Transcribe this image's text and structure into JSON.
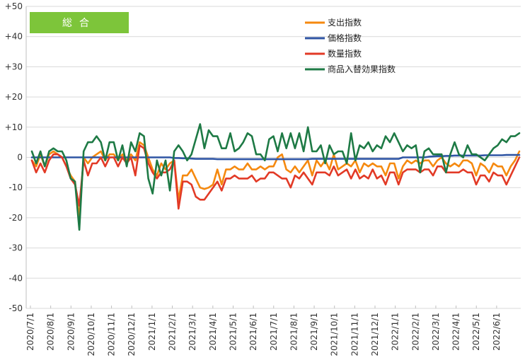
{
  "chart_data": {
    "type": "line",
    "title": "総合",
    "yticks": [
      "+50",
      "+40",
      "+30",
      "+20",
      "+10",
      "0",
      "-10",
      "-20",
      "-30",
      "-40",
      "-50"
    ],
    "ylim": [
      -50,
      50
    ],
    "xticks": [
      "2020/7/1",
      "2020/8/1",
      "2020/9/1",
      "2020/10/1",
      "2020/11/1",
      "2020/12/1",
      "2021/1/1",
      "2021/2/1",
      "2021/3/1",
      "2021/4/1",
      "2021/5/1",
      "2021/6/1",
      "2021/7/1",
      "2021/8/1",
      "2021/9/1",
      "2021/10/1",
      "2021/11/1",
      "2021/12/1",
      "2022/1/1",
      "2022/2/1",
      "2022/3/1",
      "2022/4/1",
      "2022/5/1",
      "2022/6/1"
    ],
    "grid": true,
    "legend_position": "top-right",
    "colors": {
      "spending": "#f5890f",
      "price": "#2f55a4",
      "quantity": "#e23a26",
      "substitution": "#1e7a45",
      "title_bg": "#7dc53a"
    },
    "series": [
      {
        "name": "支出指数",
        "key": "spending",
        "values": [
          -1,
          -3,
          1,
          -3,
          1,
          2,
          1,
          0,
          -3,
          -6,
          -8,
          -20,
          0,
          -2,
          0,
          1,
          2,
          -1,
          1,
          1,
          -1,
          1,
          -1,
          1,
          -1,
          5,
          4,
          0,
          -4,
          -6,
          -2,
          -4,
          -2,
          -1,
          -14,
          -6,
          -6,
          -4,
          -7,
          -10,
          -10.5,
          -10,
          -9,
          -4,
          -9,
          -4,
          -4,
          -3,
          -4,
          -4,
          -2,
          -4,
          -4,
          -3,
          -4,
          -3,
          -3,
          0,
          1,
          -4,
          -5,
          -3,
          -5,
          -3,
          -1,
          -6,
          -1,
          -3,
          -1,
          -4,
          1,
          -4,
          -3,
          -2,
          -3,
          -1,
          -5,
          -2,
          -3,
          -2,
          -3,
          -3,
          -6,
          -2,
          -2,
          -7,
          -3,
          -1,
          -2,
          -1,
          -2,
          -1,
          -1,
          -3,
          -1,
          0,
          -2,
          -3,
          -2,
          -3,
          -1,
          -1,
          -2,
          -6,
          -2,
          -3,
          -5,
          -2,
          -3,
          -3,
          -6,
          -3,
          -1,
          2
        ]
      },
      {
        "name": "価格指数",
        "key": "price",
        "values": [
          0,
          0,
          0,
          0,
          0,
          0,
          0,
          0,
          0,
          0,
          0,
          0,
          0,
          0,
          0,
          0,
          0,
          0,
          0,
          0,
          0,
          0,
          0,
          0,
          0,
          0,
          0,
          0,
          0,
          0,
          0,
          0,
          0,
          -0.2,
          -0.2,
          -0.3,
          -0.3,
          -0.4,
          -0.5,
          -0.5,
          -0.5,
          -0.5,
          -0.5,
          -0.6,
          -0.6,
          -0.6,
          -0.6,
          -0.6,
          -0.6,
          -0.6,
          -0.6,
          -0.6,
          -0.6,
          -0.6,
          -0.6,
          -0.6,
          -0.6,
          -0.6,
          -0.6,
          -0.6,
          -0.6,
          -0.6,
          -0.6,
          -0.6,
          -0.6,
          -0.5,
          -0.5,
          -0.5,
          -0.5,
          -0.5,
          -0.5,
          -0.5,
          -0.5,
          -0.5,
          -0.5,
          -0.5,
          -0.5,
          -0.5,
          -0.5,
          -0.5,
          -0.5,
          -0.5,
          -0.5,
          -0.5,
          -0.5,
          -0.5,
          0,
          0,
          0,
          0,
          0,
          0,
          0.2,
          0.3,
          0.4,
          0.4,
          0.5,
          0.5,
          0.6,
          0.6,
          0.6,
          0.6,
          0.6,
          0.6,
          0.6,
          0.7,
          0.7,
          0.7,
          0.7,
          0.7,
          0.8,
          0.8,
          0.8,
          0.8
        ]
      },
      {
        "name": "数量指数",
        "key": "quantity",
        "values": [
          -1,
          -5,
          -2,
          -5,
          -1,
          1,
          1,
          0,
          -3,
          -7,
          -9,
          -16,
          -1,
          -6,
          -2,
          -2,
          0,
          -3,
          0,
          0,
          -3,
          0,
          -2,
          0,
          -6,
          4,
          3,
          -2,
          -5,
          -7,
          -5,
          -5,
          -4,
          -1,
          -17,
          -8,
          -8,
          -9,
          -13,
          -14,
          -14,
          -12,
          -10,
          -8,
          -11,
          -7,
          -7,
          -6,
          -7,
          -7,
          -7,
          -6,
          -8,
          -7,
          -7,
          -5,
          -5,
          -6,
          -7,
          -7,
          -10,
          -6,
          -7,
          -5,
          -7,
          -9,
          -5,
          -5,
          -5,
          -6,
          -3,
          -6,
          -5,
          -4,
          -7,
          -4,
          -7,
          -6,
          -7,
          -4,
          -7,
          -6,
          -9,
          -5,
          -5,
          -9,
          -5,
          -4,
          -4,
          -4,
          -5,
          -4,
          -4,
          -6,
          -3,
          -3,
          -5,
          -5,
          -5,
          -5,
          -4,
          -5,
          -5,
          -9,
          -6,
          -6,
          -8,
          -5,
          -6,
          -6,
          -9,
          -6,
          -3,
          0
        ]
      },
      {
        "name": "商品入替効果指数",
        "key": "substitution",
        "values": [
          2,
          -2,
          2,
          -3,
          2,
          3,
          2,
          2,
          -1,
          -7,
          -8,
          -24,
          2,
          5,
          5,
          7,
          5,
          -1,
          5,
          5,
          -1,
          4,
          -3,
          5,
          2,
          8,
          7,
          -7,
          -12,
          -1,
          -6,
          -1,
          -11,
          2,
          4,
          2,
          -1,
          1,
          6,
          11,
          3,
          9,
          7,
          7,
          3,
          3,
          8,
          2,
          3,
          5,
          8,
          7,
          1,
          1,
          -1,
          6,
          7,
          2,
          8,
          3,
          8,
          3,
          8,
          2,
          10,
          2,
          2,
          4,
          -2,
          4,
          1,
          2,
          2,
          -2,
          8,
          -1,
          4,
          3,
          5,
          2,
          4,
          3,
          7,
          5,
          8,
          5,
          2,
          4,
          3,
          4,
          -5,
          2,
          3,
          1,
          1,
          1,
          -5,
          1,
          5,
          1,
          0,
          4,
          1,
          1,
          0,
          -1,
          1,
          3,
          4,
          6,
          5,
          7,
          7,
          8
        ]
      }
    ]
  }
}
